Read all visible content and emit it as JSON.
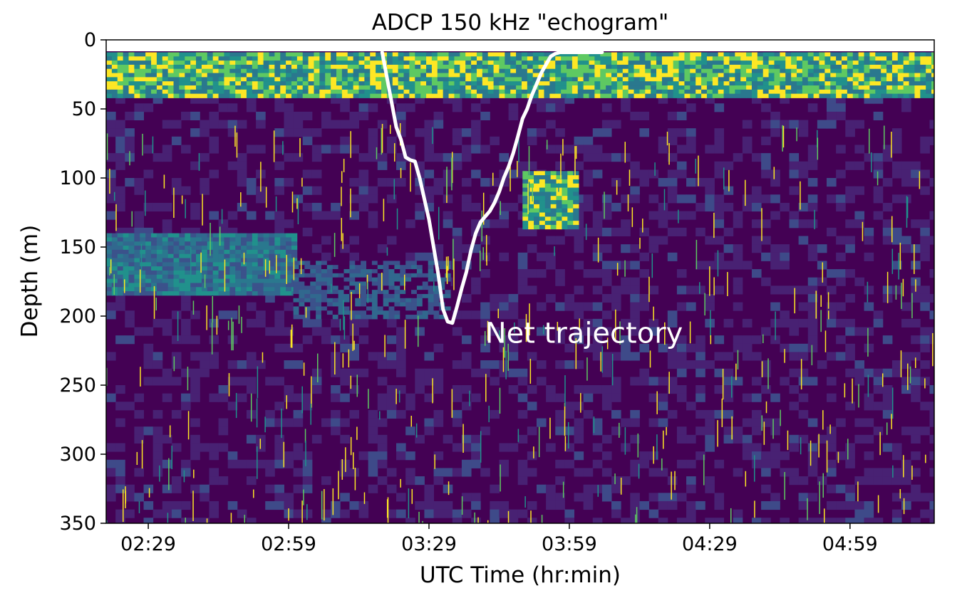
{
  "chart_data": {
    "type": "heatmap",
    "title": "ADCP 150 kHz \"echogram\"",
    "xlabel": "UTC Time (hr:min)",
    "ylabel": "Depth (m)",
    "x_range_minutes_utc": [
      140,
      317
    ],
    "y_range_m": [
      350,
      0
    ],
    "y_inverted": true,
    "colormap": "viridis",
    "colors": {
      "low": "#440154",
      "mid_low": "#3b528b",
      "mid": "#21918c",
      "mid_high": "#5ec962",
      "high": "#fde725",
      "trajectory": "#ffffff"
    },
    "grid": false,
    "xticks": {
      "values": [
        149,
        179,
        209,
        239,
        269,
        299
      ],
      "labels": [
        "02:29",
        "02:59",
        "03:29",
        "03:59",
        "04:29",
        "04:59"
      ]
    },
    "yticks": {
      "values": [
        0,
        50,
        100,
        150,
        200,
        250,
        300,
        350
      ],
      "labels": [
        "0",
        "50",
        "100",
        "150",
        "200",
        "250",
        "300",
        "350"
      ]
    },
    "echo_features": [
      {
        "description": "near-surface strong backscatter layer",
        "time_range": [
          "02:20",
          "05:17"
        ],
        "depth_range_m": [
          9,
          40
        ],
        "level": "high"
      },
      {
        "description": "scattering layer",
        "time_range": [
          "02:20",
          "03:00"
        ],
        "depth_range_m": [
          140,
          185
        ],
        "level": "mid"
      },
      {
        "description": "scattering layer",
        "time_range": [
          "03:00",
          "03:33"
        ],
        "depth_range_m": [
          160,
          200
        ],
        "level": "mid_low"
      },
      {
        "description": "patch",
        "time_range": [
          "03:49",
          "04:00"
        ],
        "depth_range_m": [
          95,
          135
        ],
        "level": "high"
      }
    ],
    "series": [
      {
        "name": "Net trajectory",
        "x": [
          199,
          200,
          201,
          202,
          203,
          204,
          205,
          206,
          207,
          208,
          209,
          210,
          211,
          212,
          213,
          214,
          215,
          216,
          217,
          218,
          219,
          220,
          221,
          222,
          223,
          224,
          225,
          226,
          227,
          228,
          229,
          230,
          231,
          232,
          233,
          234,
          235,
          236,
          237,
          238,
          239,
          240,
          241,
          242,
          243,
          244,
          245,
          246
        ],
        "y": [
          9,
          27,
          45,
          63,
          72,
          85,
          87,
          88,
          100,
          115,
          130,
          150,
          170,
          195,
          204,
          205,
          193,
          180,
          168,
          152,
          140,
          132,
          128,
          124,
          118,
          110,
          100,
          92,
          82,
          70,
          57,
          50,
          40,
          32,
          24,
          18,
          12,
          10,
          9,
          9,
          9,
          9,
          9,
          9,
          9,
          9,
          9,
          9
        ]
      }
    ],
    "annotations": [
      {
        "text": "Net trajectory",
        "x": 221,
        "y": 212
      }
    ]
  }
}
